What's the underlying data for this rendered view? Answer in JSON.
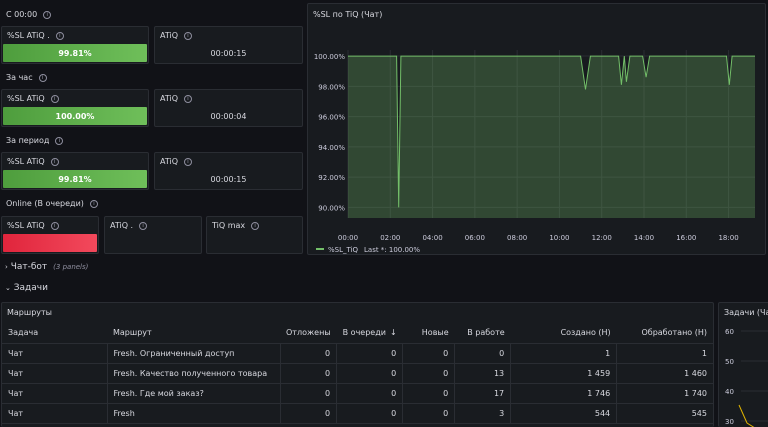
{
  "sections": {
    "s1": "С 00:00",
    "s2": "За час",
    "s3": "За период",
    "s4": "Online (В очереди)"
  },
  "stats": {
    "r1": {
      "sl_title": "%SL ATiQ .",
      "sl_value": "99.81%",
      "atiq_title": "ATiQ",
      "atiq_value": "00:00:15"
    },
    "r2": {
      "sl_title": "%SL ATiQ",
      "sl_value": "100.00%",
      "atiq_title": "ATiQ",
      "atiq_value": "00:00:04"
    },
    "r3": {
      "sl_title": "%SL ATiQ",
      "sl_value": "99.81%",
      "atiq_title": "ATiQ",
      "atiq_value": "00:00:15"
    },
    "r4": {
      "sl_title": "%SL ATiQ",
      "atiq_title": "ATiQ .",
      "max_title": "TiQ max"
    }
  },
  "chart_data": {
    "type": "line",
    "title": "%SL по TiQ (Чат)",
    "x_ticks": [
      "00:00",
      "02:00",
      "04:00",
      "06:00",
      "08:00",
      "10:00",
      "12:00",
      "14:00",
      "16:00",
      "18:00"
    ],
    "y_ticks": [
      "100.00%",
      "98.00%",
      "96.00%",
      "94.00%",
      "92.00%",
      "90.00%"
    ],
    "ylim": [
      89.3,
      100.4
    ],
    "xlim": [
      "00:00",
      "19:15"
    ],
    "grid": true,
    "legend_position": "bottom-left",
    "series": [
      {
        "name": "%SL_TiQ",
        "color": "#73bf69",
        "points": [
          [
            "00:00",
            100.0
          ],
          [
            "02:18",
            100.0
          ],
          [
            "02:24",
            90.0
          ],
          [
            "02:30",
            100.0
          ],
          [
            "11:00",
            100.0
          ],
          [
            "11:14",
            97.8
          ],
          [
            "11:28",
            100.0
          ],
          [
            "12:48",
            100.0
          ],
          [
            "12:56",
            98.1
          ],
          [
            "13:04",
            100.0
          ],
          [
            "13:10",
            98.3
          ],
          [
            "13:20",
            100.0
          ],
          [
            "13:56",
            100.0
          ],
          [
            "14:06",
            98.6
          ],
          [
            "14:16",
            100.0
          ],
          [
            "17:54",
            100.0
          ],
          [
            "18:02",
            98.1
          ],
          [
            "18:10",
            100.0
          ],
          [
            "19:15",
            100.0
          ]
        ]
      }
    ],
    "legend": {
      "label": "%SL_TiQ",
      "last_text": "Last *: 100.00%"
    }
  },
  "rows": {
    "chatbot": {
      "title": "Чат-бот",
      "sub": "(3 panels)"
    },
    "tasks": {
      "title": "Задачи"
    }
  },
  "routes_table": {
    "title": "Маршруты",
    "headers": [
      "Задача",
      "Маршрут",
      "Отложены",
      "В очереди",
      "Новые",
      "В работе",
      "Создано (Н)",
      "Обработано (Н)"
    ],
    "sort_indicator": "↓",
    "rows": [
      [
        "Чат",
        "Fresh. Ограниченный доступ",
        "0",
        "0",
        "0",
        "0",
        "1",
        "1"
      ],
      [
        "Чат",
        "Fresh. Качество полученного товара",
        "0",
        "0",
        "0",
        "13",
        "1 459",
        "1 460"
      ],
      [
        "Чат",
        "Fresh. Где мой заказ?",
        "0",
        "0",
        "0",
        "17",
        "1 746",
        "1 740"
      ],
      [
        "Чат",
        "Fresh",
        "0",
        "0",
        "0",
        "3",
        "544",
        "545"
      ]
    ]
  },
  "side_panel": {
    "title": "Задачи (Чат)",
    "y_ticks": [
      "60",
      "50",
      "40",
      "30"
    ]
  }
}
